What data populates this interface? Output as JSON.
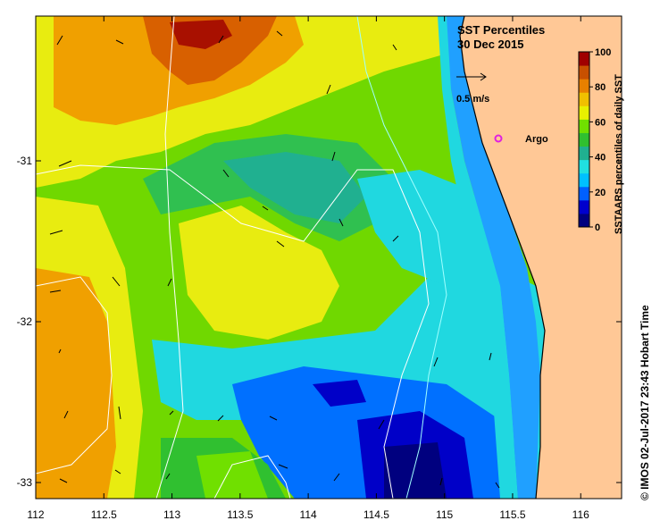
{
  "map": {
    "title_line1": "SST Percentiles",
    "title_line2": "30 Dec 2015",
    "vector_scale_label": "0.5 m/s",
    "argo_label": "Argo",
    "argo_marker_color": "#e020e0",
    "land_color": "#ffc896",
    "credit": "© IMOS 02-Jul-2017 23:43 Hobart Time",
    "longitude_range": [
      112,
      116.3
    ],
    "latitude_range": [
      -33.1,
      -30.1
    ],
    "x_ticks": [
      "112",
      "112.5",
      "113",
      "113.5",
      "114",
      "114.5",
      "115",
      "115.5",
      "116"
    ],
    "y_ticks": [
      "-31",
      "-32",
      "-33"
    ],
    "argo_float": {
      "lon": 115.35,
      "lat": -30.85
    }
  },
  "colorbar": {
    "label": "SSTAARS percentiles of daily SST",
    "ticks": [
      "100",
      "80",
      "60",
      "40",
      "20",
      "0"
    ],
    "colors": [
      "#00007f",
      "#0000cd",
      "#0060ff",
      "#00c0ff",
      "#20e0e0",
      "#20b090",
      "#30c030",
      "#70e000",
      "#e8f000",
      "#f0c000",
      "#e88000",
      "#c85000",
      "#a00000"
    ]
  }
}
